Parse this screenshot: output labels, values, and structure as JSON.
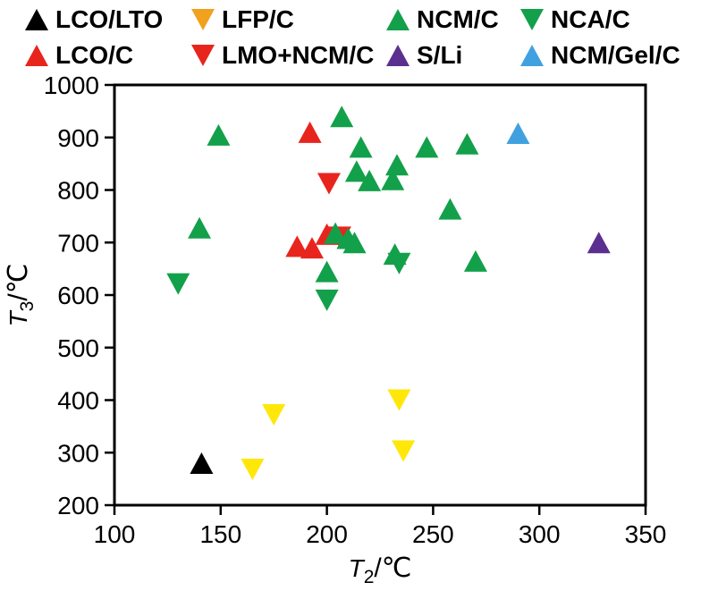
{
  "legend": {
    "rows": [
      [
        {
          "label": "LCO/LTO",
          "marker": "triangle-up",
          "color": "#000000"
        },
        {
          "label": "LFP/C",
          "marker": "triangle-down",
          "color": "#f0a21e"
        },
        {
          "label": "NCM/C",
          "marker": "triangle-up",
          "color": "#13a04a"
        },
        {
          "label": "NCA/C",
          "marker": "triangle-down",
          "color": "#13a04a"
        }
      ],
      [
        {
          "label": "LCO/C",
          "marker": "triangle-up",
          "color": "#e8251d"
        },
        {
          "label": "LMO+NCM/C",
          "marker": "triangle-down",
          "color": "#e8251d"
        },
        {
          "label": "S/Li",
          "marker": "triangle-up",
          "color": "#5b2f8f"
        },
        {
          "label": "NCM/Gel/C",
          "marker": "triangle-up",
          "color": "#41a1e0"
        }
      ]
    ]
  },
  "chart_data": {
    "type": "scatter",
    "title": "",
    "xlabel": {
      "base": "T",
      "sub": "2",
      "unit": "/℃"
    },
    "ylabel": {
      "base": "T",
      "sub": "3",
      "unit": "/℃"
    },
    "xlim": [
      100,
      350
    ],
    "ylim": [
      200,
      1000
    ],
    "xticks": [
      100,
      150,
      200,
      250,
      300,
      350
    ],
    "yticks": [
      200,
      300,
      400,
      500,
      600,
      700,
      800,
      900,
      1000
    ],
    "grid": false,
    "legend_position": "top",
    "series": [
      {
        "name": "LCO/LTO",
        "marker": "triangle-up",
        "color": "#000000",
        "points": [
          [
            141,
            280
          ]
        ]
      },
      {
        "name": "LCO/C",
        "marker": "triangle-up",
        "color": "#e8251d",
        "points": [
          [
            192,
            910
          ],
          [
            186,
            693
          ],
          [
            193,
            690
          ],
          [
            200,
            716
          ]
        ]
      },
      {
        "name": "LFP/C",
        "marker": "triangle-down",
        "color": "#ffe70a",
        "points": [
          [
            175,
            372
          ],
          [
            234,
            400
          ],
          [
            236,
            303
          ],
          [
            165,
            268
          ]
        ]
      },
      {
        "name": "LMO+NCM/C",
        "marker": "triangle-down",
        "color": "#e8251d",
        "points": [
          [
            201,
            812
          ],
          [
            206,
            710
          ]
        ]
      },
      {
        "name": "NCM/C",
        "marker": "triangle-up",
        "color": "#13a04a",
        "points": [
          [
            149,
            905
          ],
          [
            207,
            940
          ],
          [
            216,
            882
          ],
          [
            247,
            882
          ],
          [
            266,
            888
          ],
          [
            214,
            836
          ],
          [
            220,
            818
          ],
          [
            231,
            820
          ],
          [
            233,
            848
          ],
          [
            258,
            764
          ],
          [
            140,
            728
          ],
          [
            204,
            718
          ],
          [
            210,
            708
          ],
          [
            213,
            700
          ],
          [
            232,
            678
          ],
          [
            200,
            645
          ],
          [
            270,
            665
          ]
        ]
      },
      {
        "name": "NCA/C",
        "marker": "triangle-down",
        "color": "#13a04a",
        "points": [
          [
            130,
            621
          ],
          [
            200,
            590
          ],
          [
            234,
            660
          ]
        ]
      },
      {
        "name": "S/Li",
        "marker": "triangle-up",
        "color": "#5b2f8f",
        "points": [
          [
            328,
            700
          ]
        ]
      },
      {
        "name": "NCM/Gel/C",
        "marker": "triangle-up",
        "color": "#41a1e0",
        "points": [
          [
            290,
            908
          ]
        ]
      }
    ]
  }
}
